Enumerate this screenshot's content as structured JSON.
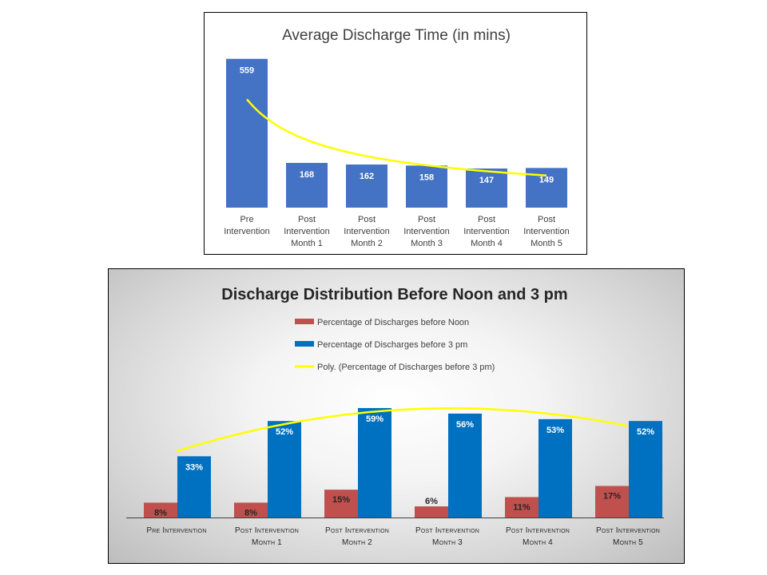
{
  "chart_data": [
    {
      "type": "bar",
      "title": "Average Discharge Time (in mins)",
      "categories": [
        [
          "Pre",
          "Intervention"
        ],
        [
          "Post",
          "Intervention",
          "Month 1"
        ],
        [
          "Post",
          "Intervention",
          "Month 2"
        ],
        [
          "Post",
          "Intervention",
          "Month 3"
        ],
        [
          "Post",
          "Intervention",
          "Month 4"
        ],
        [
          "Post",
          "Intervention",
          "Month 5"
        ]
      ],
      "values": [
        559,
        168,
        162,
        158,
        147,
        149
      ],
      "ylim": [
        0,
        600
      ],
      "trendline": {
        "type": "power",
        "color": "#FFFF00"
      },
      "colors": {
        "bar": "#4472C4",
        "label": "#FFFFFF"
      },
      "grid": false
    },
    {
      "type": "bar",
      "title": "Discharge Distribution Before Noon and 3 pm",
      "categories": [
        [
          "Pre Intervention"
        ],
        [
          "Post Intervention",
          "Month 1"
        ],
        [
          "Post Intervention",
          "Month 2"
        ],
        [
          "Post Intervention",
          "Month 3"
        ],
        [
          "Post Intervention",
          "Month 4"
        ],
        [
          "Post Intervention",
          "Month 5"
        ]
      ],
      "series": [
        {
          "name": "Percentage of Discharges before Noon",
          "values": [
            8,
            8,
            15,
            6,
            11,
            17
          ],
          "labels": [
            "8%",
            "8%",
            "15%",
            "6%",
            "11%",
            "17%"
          ],
          "color": "#C0504D"
        },
        {
          "name": "Percentage of Discharges before 3 pm",
          "values": [
            33,
            52,
            59,
            56,
            53,
            52
          ],
          "labels": [
            "33%",
            "52%",
            "59%",
            "56%",
            "53%",
            "52%"
          ],
          "color": "#0070C0"
        }
      ],
      "trendline": {
        "name": "Poly. (Percentage of Discharges before 3 pm)",
        "type": "polynomial",
        "order": 2,
        "color": "#FFFF00"
      },
      "ylim": [
        0,
        65
      ],
      "legend": "top-center",
      "grid": false
    }
  ]
}
